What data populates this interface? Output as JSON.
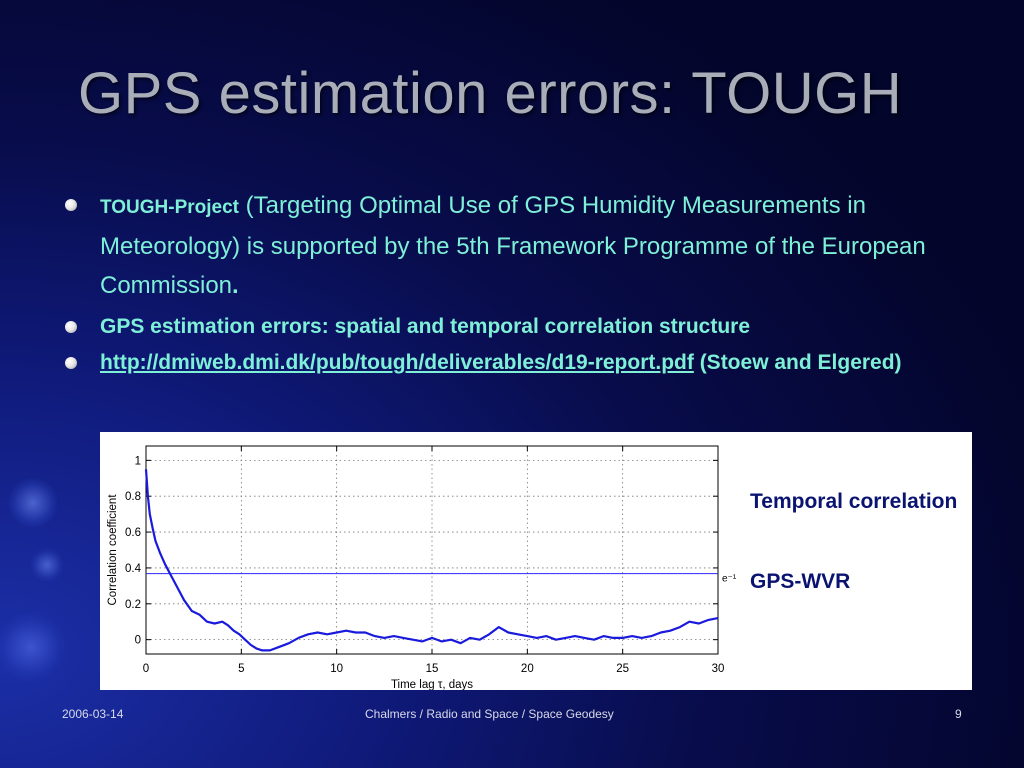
{
  "slide": {
    "title": "GPS estimation errors: TOUGH",
    "bullets": {
      "b1_bold": "TOUGH-Project",
      "b1_text": " (Targeting Optimal Use of GPS Humidity Measurements in Meteorology) is supported by the 5th Framework Programme of the European Commission",
      "b1_end": ".",
      "b2": "GPS estimation errors: spatial and temporal correlation structure",
      "b3_link": "http://dmiweb.dmi.dk/pub/tough/deliverables/d19-report.pdf",
      "b3_text": " (Stoew and Elgered)"
    },
    "side_labels": {
      "line1": "Temporal correlation",
      "line2": "GPS-WVR"
    },
    "footer": {
      "date": "2006-03-14",
      "center": "Chalmers / Radio and Space / Space Geodesy",
      "page": "9"
    },
    "colors": {
      "bullet_text": "#7ff0d8",
      "title": "#a9adb8",
      "series": "#1a1adc",
      "side_label": "#0a1470"
    }
  },
  "chart_data": {
    "type": "line",
    "xlabel": "Time lag τ, days",
    "ylabel": "Correlation coefficient",
    "xlim": [
      0,
      30
    ],
    "ylim": [
      -0.08,
      1.08
    ],
    "xticks": [
      0,
      5,
      10,
      15,
      20,
      25,
      30
    ],
    "yticks": [
      0,
      0.2,
      0.4,
      0.6,
      0.8,
      1
    ],
    "grid": true,
    "reference_line": {
      "y": 0.368,
      "label": "e⁻¹"
    },
    "series": [
      {
        "x": [
          0,
          0.1,
          0.2,
          0.35,
          0.5,
          0.75,
          1.0,
          1.3,
          1.6,
          2.0,
          2.4,
          2.8,
          3.2,
          3.6,
          4.0,
          4.3,
          4.6,
          4.9,
          5.2,
          5.5,
          5.8,
          6.1,
          6.5,
          7.0,
          7.5,
          8.0,
          8.5,
          9.0,
          9.5,
          10.0,
          10.5,
          11.0,
          11.5,
          12.0,
          12.5,
          13.0,
          13.5,
          14.0,
          14.5,
          15.0,
          15.5,
          16.0,
          16.5,
          17.0,
          17.5,
          18.0,
          18.5,
          19.0,
          19.5,
          20.0,
          20.5,
          21.0,
          21.5,
          22.0,
          22.5,
          23.0,
          23.5,
          24.0,
          24.5,
          25.0,
          25.5,
          26.0,
          26.5,
          27.0,
          27.5,
          28.0,
          28.5,
          29.0,
          29.5,
          30.0
        ],
        "values": [
          0.95,
          0.8,
          0.7,
          0.62,
          0.55,
          0.48,
          0.42,
          0.36,
          0.3,
          0.22,
          0.16,
          0.14,
          0.1,
          0.09,
          0.1,
          0.08,
          0.05,
          0.03,
          0.0,
          -0.03,
          -0.05,
          -0.06,
          -0.06,
          -0.04,
          -0.02,
          0.01,
          0.03,
          0.04,
          0.03,
          0.04,
          0.05,
          0.04,
          0.04,
          0.02,
          0.01,
          0.02,
          0.01,
          0.0,
          -0.01,
          0.01,
          -0.01,
          0.0,
          -0.02,
          0.01,
          0.0,
          0.03,
          0.07,
          0.04,
          0.03,
          0.02,
          0.01,
          0.02,
          0.0,
          0.01,
          0.02,
          0.01,
          0.0,
          0.02,
          0.01,
          0.01,
          0.02,
          0.01,
          0.02,
          0.04,
          0.05,
          0.07,
          0.1,
          0.09,
          0.11,
          0.12
        ]
      }
    ]
  }
}
